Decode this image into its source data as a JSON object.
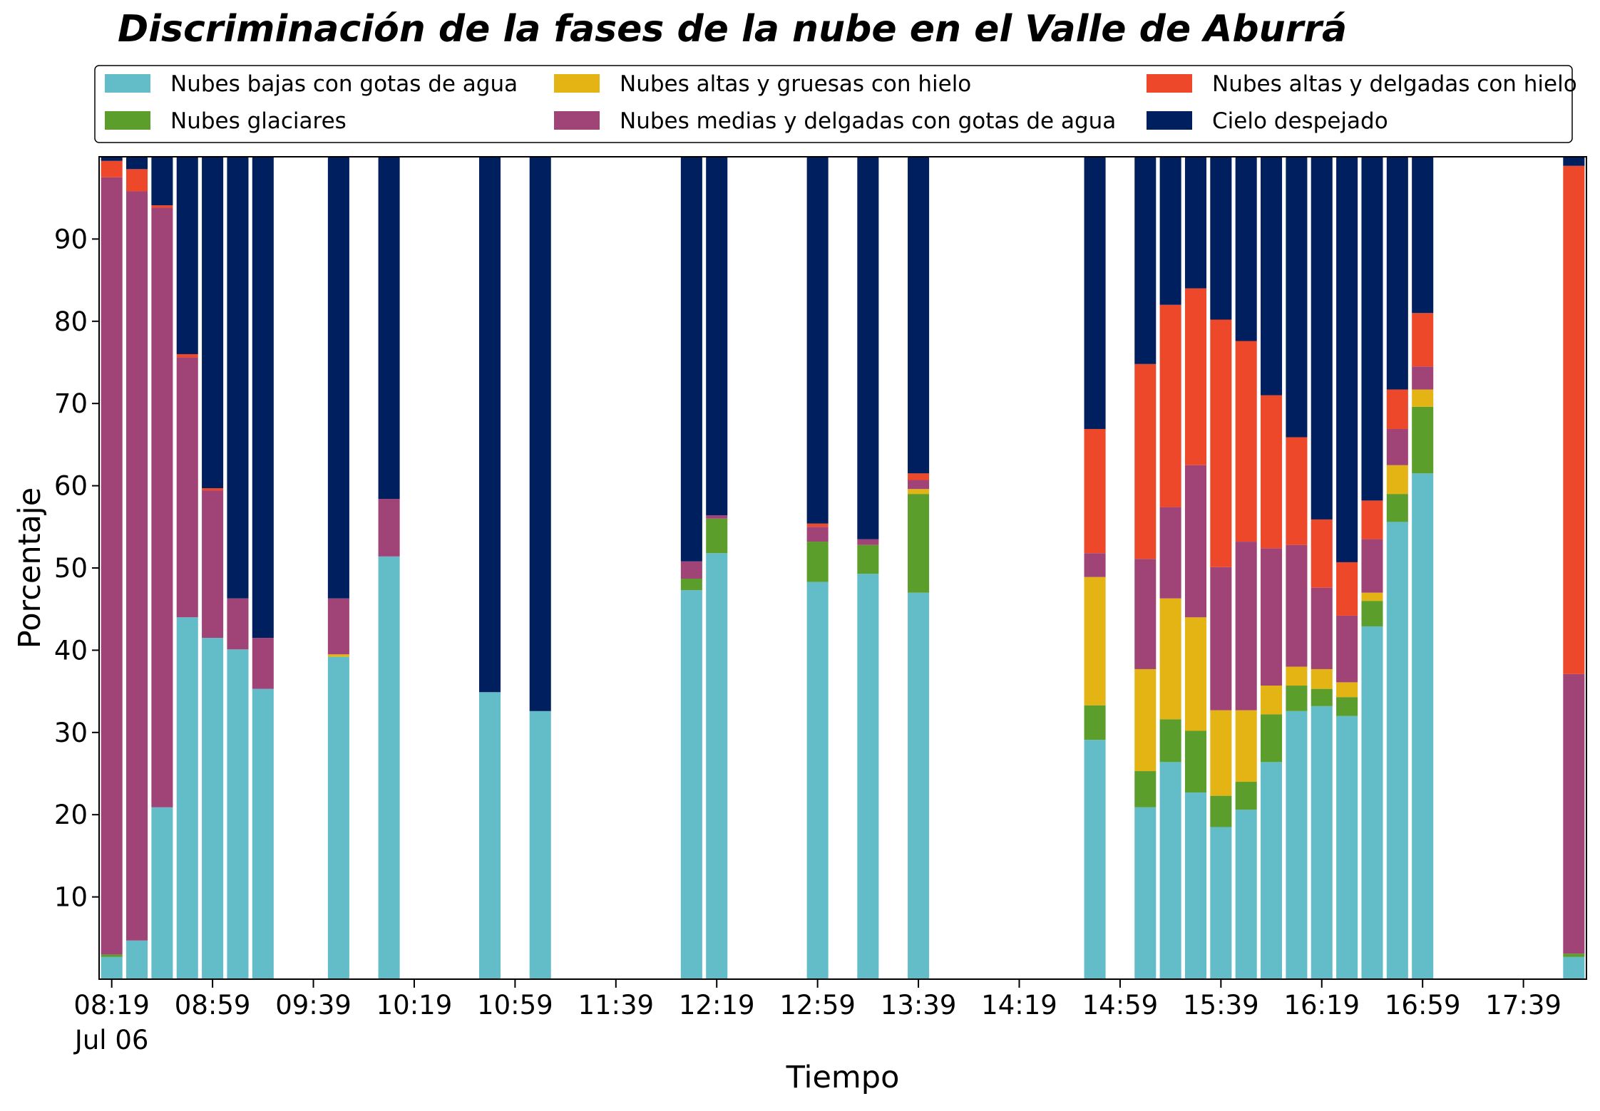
{
  "chart_data": {
    "type": "stacked_bar",
    "title": "Discriminación de la fases de la nube en el Valle de Aburrá",
    "x_label": "Tiempo",
    "y_label": "Porcentaje",
    "date_label": "Jul 06",
    "x": [
      "08:19",
      "08:29",
      "08:39",
      "08:49",
      "08:59",
      "09:09",
      "09:19",
      "09:49",
      "10:09",
      "10:49",
      "11:09",
      "12:09",
      "12:19",
      "12:59",
      "13:19",
      "13:39",
      "14:49",
      "15:09",
      "15:19",
      "15:29",
      "15:39",
      "15:49",
      "15:59",
      "16:09",
      "16:19",
      "16:29",
      "16:39",
      "16:49",
      "16:59",
      "17:59"
    ],
    "xlim": [
      "08:14",
      "18:04"
    ],
    "xticks": [
      "08:19",
      "08:59",
      "09:39",
      "10:19",
      "10:59",
      "11:39",
      "12:19",
      "12:59",
      "13:39",
      "14:19",
      "14:59",
      "15:39",
      "16:19",
      "16:59",
      "17:39"
    ],
    "ylim": [
      0,
      100
    ],
    "yticks": [
      10,
      20,
      30,
      40,
      50,
      60,
      70,
      80,
      90
    ],
    "legend": "top",
    "series": [
      {
        "name": "Nubes bajas con gotas de agua",
        "color": "#63bdc9",
        "values": [
          2.7,
          4.7,
          20.9,
          44.0,
          41.5,
          40.1,
          35.3,
          39.2,
          51.4,
          34.9,
          32.6,
          47.3,
          51.8,
          48.3,
          49.3,
          47.0,
          29.1,
          20.9,
          26.4,
          22.7,
          18.5,
          20.6,
          26.4,
          32.6,
          33.2,
          32.0,
          42.9,
          55.6,
          61.5,
          2.7
        ]
      },
      {
        "name": "Nubes glaciares",
        "color": "#5c9e2c",
        "values": [
          0.3,
          0,
          0,
          0,
          0,
          0,
          0,
          0,
          0,
          0,
          0,
          1.4,
          4.2,
          4.9,
          3.5,
          12.0,
          4.2,
          4.4,
          5.2,
          7.5,
          3.8,
          3.4,
          5.8,
          3.1,
          2.1,
          2.3,
          3.1,
          3.4,
          8.1,
          0.4
        ]
      },
      {
        "name": "Nubes altas y gruesas con hielo",
        "color": "#e3b413",
        "values": [
          0,
          0,
          0,
          0,
          0,
          0,
          0,
          0.3,
          0,
          0,
          0,
          0,
          0,
          0,
          0,
          0.6,
          15.6,
          12.4,
          14.7,
          13.8,
          10.4,
          8.7,
          3.5,
          2.3,
          2.4,
          1.8,
          1.0,
          3.5,
          2.1,
          0
        ]
      },
      {
        "name": "Nubes medias y delgadas con gotas de agua",
        "color": "#a04376",
        "values": [
          94.5,
          91.1,
          72.9,
          31.6,
          17.9,
          6.2,
          6.2,
          6.8,
          7.0,
          0,
          0,
          2.1,
          0.4,
          1.8,
          0.7,
          1.1,
          2.9,
          13.4,
          11.1,
          18.5,
          17.4,
          20.5,
          16.7,
          14.8,
          9.9,
          8.1,
          6.5,
          4.4,
          2.8,
          34.0
        ]
      },
      {
        "name": "Nubes altas y delgadas con hielo",
        "color": "#ee482a",
        "values": [
          2.0,
          2.7,
          0.3,
          0.4,
          0.3,
          0,
          0,
          0,
          0,
          0,
          0,
          0,
          0,
          0.4,
          0,
          0.8,
          15.1,
          23.7,
          24.6,
          21.5,
          30.1,
          24.4,
          18.6,
          13.1,
          8.3,
          6.5,
          4.7,
          4.8,
          6.5,
          61.8
        ]
      },
      {
        "name": "Cielo despejado",
        "color": "#001f5f",
        "values": [
          0.5,
          1.5,
          5.9,
          24.0,
          40.3,
          53.7,
          58.5,
          53.7,
          41.6,
          65.1,
          67.4,
          49.2,
          43.6,
          44.6,
          46.5,
          38.5,
          33.1,
          25.2,
          18.0,
          16.0,
          19.8,
          22.4,
          29.0,
          34.1,
          44.1,
          49.3,
          41.8,
          28.3,
          19.0,
          1.1
        ]
      }
    ]
  }
}
